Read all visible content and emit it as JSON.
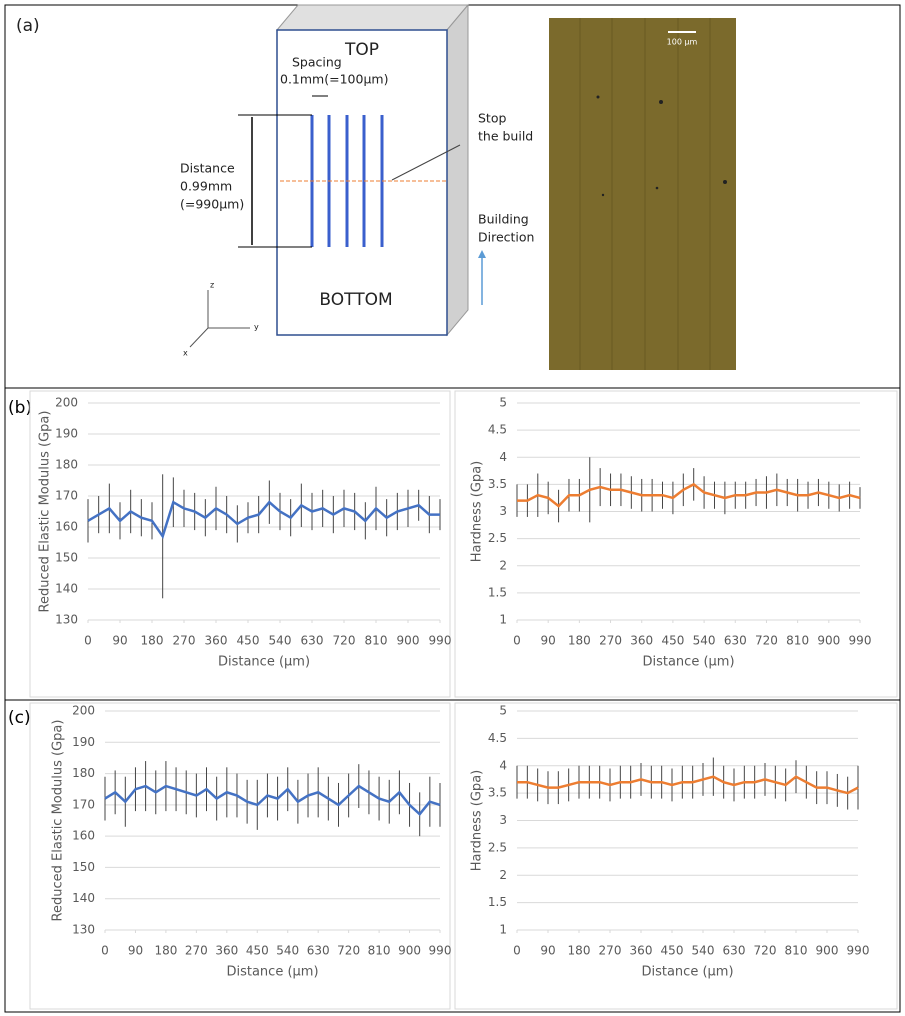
{
  "panel_a": {
    "label": "(a)",
    "top": "TOP",
    "bottom": "BOTTOM",
    "spacing": [
      "Spacing",
      "0.1mm(=100μm)"
    ],
    "distance": [
      "Distance",
      "0.99mm",
      "(=990μm)"
    ],
    "stop": [
      "Stop",
      "the build"
    ],
    "direction": [
      "Building",
      "Direction"
    ],
    "axes": [
      "z",
      "y",
      "x"
    ],
    "scale_bar": "100 μm"
  },
  "panel_b": {
    "label": "(b)"
  },
  "panel_c": {
    "label": "(c)"
  },
  "chart_data": [
    {
      "type": "line",
      "y_label": "Reduced Elastic Modulus (Gpa)",
      "x_label": "Distance (µm)",
      "color": "#4472c4",
      "grid": true,
      "x": [
        0,
        30,
        60,
        90,
        120,
        150,
        180,
        210,
        240,
        270,
        300,
        330,
        360,
        390,
        420,
        450,
        480,
        510,
        540,
        570,
        600,
        630,
        660,
        690,
        720,
        750,
        780,
        810,
        840,
        870,
        900,
        930,
        960,
        990
      ],
      "values": [
        162,
        164,
        166,
        162,
        165,
        163,
        162,
        157,
        168,
        166,
        165,
        163,
        166,
        164,
        161,
        163,
        164,
        168,
        165,
        163,
        167,
        165,
        166,
        164,
        166,
        165,
        162,
        166,
        163,
        165,
        166,
        167,
        164,
        164
      ],
      "errors": [
        7,
        6,
        8,
        6,
        7,
        6,
        6,
        20,
        8,
        6,
        6,
        6,
        7,
        6,
        6,
        5,
        6,
        7,
        6,
        6,
        7,
        6,
        6,
        6,
        6,
        6,
        6,
        7,
        6,
        6,
        6,
        5,
        6,
        5
      ],
      "xlim": [
        0,
        990
      ],
      "xticks": [
        0,
        90,
        180,
        270,
        360,
        450,
        540,
        630,
        720,
        810,
        900,
        990
      ],
      "ylim": [
        130,
        200
      ],
      "yticks": [
        130,
        140,
        150,
        160,
        170,
        180,
        190,
        200
      ]
    },
    {
      "type": "line",
      "y_label": "Hardness (Gpa)",
      "x_label": "Distance (µm)",
      "color": "#ed7d31",
      "grid": true,
      "x": [
        0,
        30,
        60,
        90,
        120,
        150,
        180,
        210,
        240,
        270,
        300,
        330,
        360,
        390,
        420,
        450,
        480,
        510,
        540,
        570,
        600,
        630,
        660,
        690,
        720,
        750,
        780,
        810,
        840,
        870,
        900,
        930,
        960,
        990
      ],
      "values": [
        3.2,
        3.2,
        3.3,
        3.25,
        3.1,
        3.3,
        3.3,
        3.4,
        3.45,
        3.4,
        3.4,
        3.35,
        3.3,
        3.3,
        3.3,
        3.25,
        3.4,
        3.5,
        3.35,
        3.3,
        3.25,
        3.3,
        3.3,
        3.35,
        3.35,
        3.4,
        3.35,
        3.3,
        3.3,
        3.35,
        3.3,
        3.25,
        3.3,
        3.25
      ],
      "errors": [
        0.3,
        0.3,
        0.4,
        0.3,
        0.3,
        0.3,
        0.3,
        0.6,
        0.35,
        0.3,
        0.3,
        0.3,
        0.3,
        0.3,
        0.25,
        0.3,
        0.3,
        0.3,
        0.3,
        0.25,
        0.3,
        0.25,
        0.25,
        0.25,
        0.3,
        0.3,
        0.25,
        0.3,
        0.25,
        0.25,
        0.25,
        0.25,
        0.25,
        0.2
      ],
      "xlim": [
        0,
        990
      ],
      "xticks": [
        0,
        90,
        180,
        270,
        360,
        450,
        540,
        630,
        720,
        810,
        900,
        990
      ],
      "ylim": [
        1,
        5
      ],
      "yticks": [
        1,
        1.5,
        2,
        2.5,
        3,
        3.5,
        4,
        4.5,
        5
      ]
    },
    {
      "type": "line",
      "y_label": "Reduced Elastic Modulus (Gpa)",
      "x_label": "Distance (µm)",
      "color": "#4472c4",
      "grid": true,
      "x": [
        0,
        30,
        60,
        90,
        120,
        150,
        180,
        210,
        240,
        270,
        300,
        330,
        360,
        390,
        420,
        450,
        480,
        510,
        540,
        570,
        600,
        630,
        660,
        690,
        720,
        750,
        780,
        810,
        840,
        870,
        900,
        930,
        960,
        990
      ],
      "values": [
        172,
        174,
        171,
        175,
        176,
        174,
        176,
        175,
        174,
        173,
        175,
        172,
        174,
        173,
        171,
        170,
        173,
        172,
        175,
        171,
        173,
        174,
        172,
        170,
        173,
        176,
        174,
        172,
        171,
        174,
        170,
        167,
        171,
        170
      ],
      "errors": [
        7,
        7,
        8,
        7,
        8,
        7,
        8,
        7,
        7,
        7,
        7,
        7,
        8,
        7,
        7,
        8,
        7,
        7,
        7,
        7,
        7,
        8,
        7,
        7,
        7,
        7,
        7,
        7,
        7,
        7,
        7,
        7,
        8,
        7
      ],
      "xlim": [
        0,
        990
      ],
      "xticks": [
        0,
        90,
        180,
        270,
        360,
        450,
        540,
        630,
        720,
        810,
        900,
        990
      ],
      "ylim": [
        130,
        200
      ],
      "yticks": [
        130,
        140,
        150,
        160,
        170,
        180,
        190,
        200
      ]
    },
    {
      "type": "line",
      "y_label": "Hardness (Gpa)",
      "x_label": "Distance (µm)",
      "color": "#ed7d31",
      "grid": true,
      "x": [
        0,
        30,
        60,
        90,
        120,
        150,
        180,
        210,
        240,
        270,
        300,
        330,
        360,
        390,
        420,
        450,
        480,
        510,
        540,
        570,
        600,
        630,
        660,
        690,
        720,
        750,
        780,
        810,
        840,
        870,
        900,
        930,
        960,
        990
      ],
      "values": [
        3.7,
        3.7,
        3.65,
        3.6,
        3.6,
        3.65,
        3.7,
        3.7,
        3.7,
        3.65,
        3.7,
        3.7,
        3.75,
        3.7,
        3.7,
        3.65,
        3.7,
        3.7,
        3.75,
        3.8,
        3.7,
        3.65,
        3.7,
        3.7,
        3.75,
        3.7,
        3.65,
        3.8,
        3.7,
        3.6,
        3.6,
        3.55,
        3.5,
        3.6
      ],
      "errors": [
        0.3,
        0.3,
        0.3,
        0.3,
        0.3,
        0.3,
        0.3,
        0.3,
        0.3,
        0.3,
        0.3,
        0.3,
        0.3,
        0.3,
        0.3,
        0.3,
        0.3,
        0.3,
        0.3,
        0.35,
        0.3,
        0.3,
        0.3,
        0.3,
        0.3,
        0.3,
        0.3,
        0.3,
        0.3,
        0.3,
        0.3,
        0.3,
        0.3,
        0.4
      ],
      "xlim": [
        0,
        990
      ],
      "xticks": [
        0,
        90,
        180,
        270,
        360,
        450,
        540,
        630,
        720,
        810,
        900,
        990
      ],
      "ylim": [
        1,
        5
      ],
      "yticks": [
        1,
        1.5,
        2,
        2.5,
        3,
        3.5,
        4,
        4.5,
        5
      ]
    }
  ]
}
